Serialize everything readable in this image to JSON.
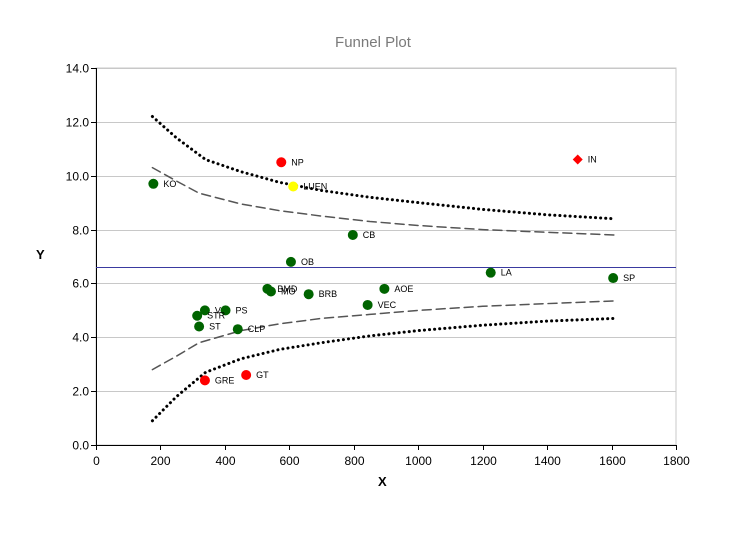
{
  "chart_data": {
    "type": "scatter",
    "title": "Funnel Plot",
    "xlabel": "X",
    "ylabel": "Y",
    "xlim": [
      0,
      1800
    ],
    "ylim": [
      0,
      14
    ],
    "xticks": [
      "0",
      "200",
      "400",
      "600",
      "800",
      "1000",
      "1200",
      "1400",
      "1600",
      "1800"
    ],
    "yticks": [
      "0.0",
      "2.0",
      "4.0",
      "6.0",
      "8.0",
      "10.0",
      "12.0",
      "14.0"
    ],
    "grid": "horizontal",
    "mean_line": {
      "y": 6.6,
      "color": "#3a3aa0"
    },
    "limit_lines": {
      "upper_outer": {
        "style": "dotted",
        "x": [
          175,
          250,
          340,
          450,
          570,
          700,
          850,
          1000,
          1200,
          1400,
          1610
        ],
        "y": [
          12.2,
          11.4,
          10.6,
          10.15,
          9.75,
          9.45,
          9.2,
          9.0,
          8.75,
          8.55,
          8.4
        ]
      },
      "upper_inner": {
        "style": "dashed",
        "x": [
          175,
          250,
          320,
          450,
          570,
          700,
          850,
          1000,
          1200,
          1400,
          1610
        ],
        "y": [
          10.3,
          9.8,
          9.35,
          8.95,
          8.7,
          8.5,
          8.3,
          8.15,
          8.0,
          7.9,
          7.8
        ]
      },
      "lower_inner": {
        "style": "dashed",
        "x": [
          175,
          250,
          320,
          450,
          570,
          700,
          850,
          1000,
          1200,
          1400,
          1610
        ],
        "y": [
          2.8,
          3.3,
          3.8,
          4.25,
          4.5,
          4.7,
          4.85,
          5.0,
          5.15,
          5.25,
          5.35
        ]
      },
      "lower_outer": {
        "style": "dotted",
        "x": [
          175,
          250,
          340,
          450,
          570,
          700,
          850,
          1000,
          1200,
          1400,
          1610
        ],
        "y": [
          0.9,
          1.8,
          2.7,
          3.2,
          3.55,
          3.8,
          4.05,
          4.25,
          4.45,
          4.6,
          4.7
        ]
      }
    },
    "points": [
      {
        "label": "KO",
        "x": 178,
        "y": 9.7,
        "color": "#006400",
        "marker": "circle"
      },
      {
        "label": "NP",
        "x": 575,
        "y": 10.5,
        "color": "#ff0000",
        "marker": "circle"
      },
      {
        "label": "LUEN",
        "x": 612,
        "y": 9.6,
        "color": "#ffff00",
        "marker": "circle"
      },
      {
        "label": "IN",
        "x": 1495,
        "y": 10.6,
        "color": "#ff0000",
        "marker": "diamond"
      },
      {
        "label": "CB",
        "x": 797,
        "y": 7.8,
        "color": "#006400",
        "marker": "circle"
      },
      {
        "label": "OB",
        "x": 605,
        "y": 6.8,
        "color": "#006400",
        "marker": "circle"
      },
      {
        "label": "LA",
        "x": 1225,
        "y": 6.4,
        "color": "#006400",
        "marker": "circle"
      },
      {
        "label": "SP",
        "x": 1605,
        "y": 6.2,
        "color": "#006400",
        "marker": "circle"
      },
      {
        "label": "BMD",
        "x": 532,
        "y": 5.8,
        "color": "#006400",
        "marker": "circle"
      },
      {
        "label": "MO",
        "x": 543,
        "y": 5.7,
        "color": "#006400",
        "marker": "circle"
      },
      {
        "label": "AOE",
        "x": 895,
        "y": 5.8,
        "color": "#006400",
        "marker": "circle"
      },
      {
        "label": "BRB",
        "x": 660,
        "y": 5.6,
        "color": "#006400",
        "marker": "circle"
      },
      {
        "label": "VEC",
        "x": 843,
        "y": 5.2,
        "color": "#006400",
        "marker": "circle"
      },
      {
        "label": "VS",
        "x": 338,
        "y": 5.0,
        "color": "#006400",
        "marker": "circle"
      },
      {
        "label": "PS",
        "x": 402,
        "y": 5.0,
        "color": "#006400",
        "marker": "circle"
      },
      {
        "label": "STR",
        "x": 314,
        "y": 4.8,
        "color": "#006400",
        "marker": "circle"
      },
      {
        "label": "ST",
        "x": 320,
        "y": 4.4,
        "color": "#006400",
        "marker": "circle"
      },
      {
        "label": "CLP",
        "x": 440,
        "y": 4.3,
        "color": "#006400",
        "marker": "circle"
      },
      {
        "label": "GT",
        "x": 466,
        "y": 2.6,
        "color": "#ff0000",
        "marker": "circle"
      },
      {
        "label": "GRE",
        "x": 338,
        "y": 2.4,
        "color": "#ff0000",
        "marker": "circle"
      }
    ]
  }
}
